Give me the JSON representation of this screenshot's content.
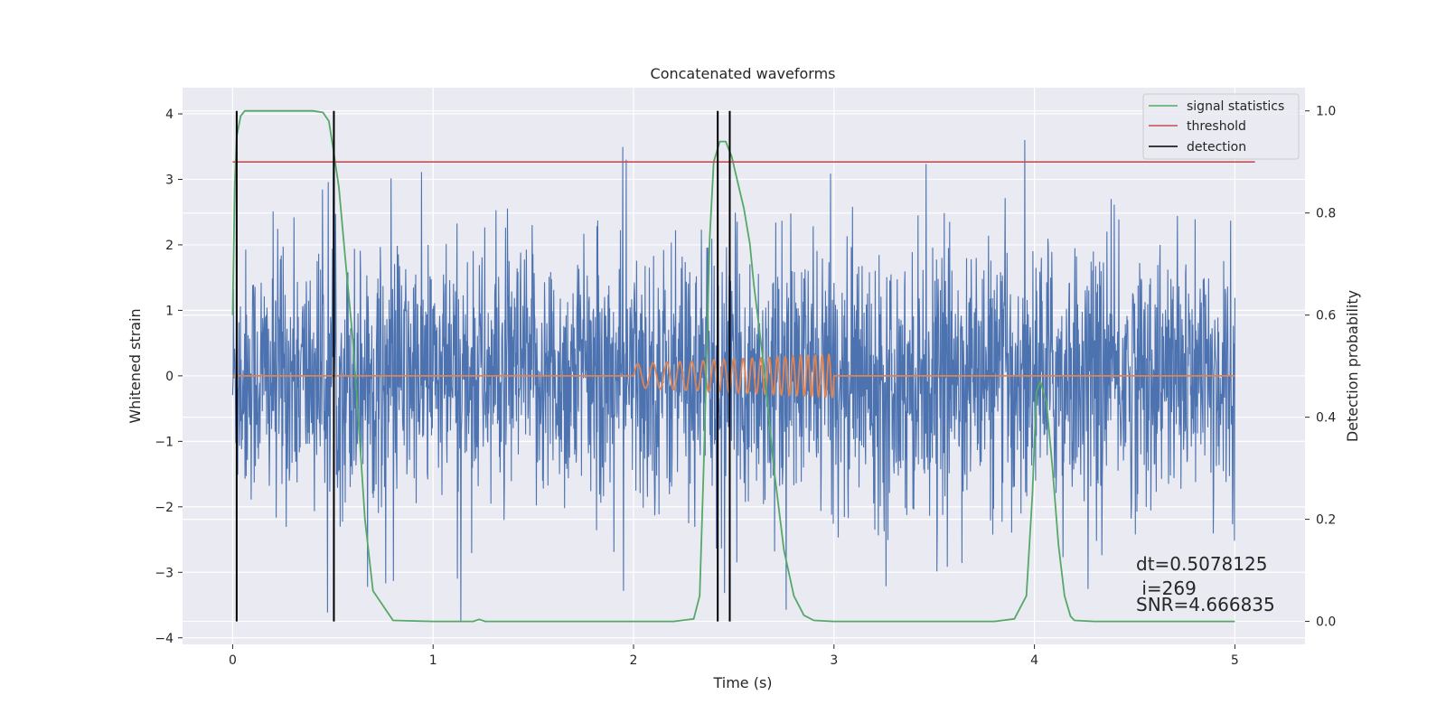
{
  "chart_data": {
    "type": "line",
    "title": "Concatenated waveforms",
    "xlabel": "Time (s)",
    "ylabel": "Whitened strain",
    "y2label": "Detection probability",
    "xlim": [
      -0.25,
      5.35
    ],
    "ylim": [
      -4.1,
      4.4
    ],
    "y2lim": [
      -0.045,
      1.0455
    ],
    "x_ticks": [
      0,
      1,
      2,
      3,
      4,
      5
    ],
    "y_ticks": [
      -4,
      -3,
      -2,
      -1,
      0,
      1,
      2,
      3,
      4
    ],
    "y2_ticks": [
      0.0,
      0.2,
      0.4,
      0.6,
      0.8,
      1.0
    ],
    "grid": true,
    "legend_position": "top-right",
    "legend": [
      "signal statistics",
      "threshold",
      "detection"
    ],
    "colors": {
      "noise": "#4c72b0",
      "injection": "#dd8452",
      "signal_statistics": "#55a868",
      "threshold": "#c44e52",
      "detection": "#000000",
      "plot_bg": "#eaeaf2",
      "grid": "#ffffff"
    },
    "noise_series": {
      "x_range": [
        0,
        5
      ],
      "center": 0,
      "typical_amplitude": 1.0,
      "peak_max": 3.6,
      "peak_min": -3.75
    },
    "injection_series": {
      "x": [
        2.0,
        3.0
      ],
      "peak_amplitude": 0.33,
      "start_frequency_hz": 12,
      "end_frequency_hz": 30,
      "flat_elsewhere": 0
    },
    "signal_statistics": {
      "x": [
        0,
        0.01,
        0.02,
        0.04,
        0.06,
        0.1,
        0.2,
        0.3,
        0.4,
        0.45,
        0.48,
        0.5,
        0.53,
        0.56,
        0.6,
        0.63,
        0.66,
        0.7,
        0.8,
        1.0,
        1.2,
        1.23,
        1.26,
        1.4,
        1.6,
        1.8,
        2.0,
        2.2,
        2.3,
        2.33,
        2.35,
        2.38,
        2.4,
        2.43,
        2.46,
        2.49,
        2.52,
        2.55,
        2.58,
        2.6,
        2.65,
        2.7,
        2.75,
        2.8,
        2.85,
        2.9,
        3.0,
        3.2,
        3.5,
        3.7,
        3.8,
        3.9,
        3.96,
        3.99,
        4.01,
        4.03,
        4.06,
        4.09,
        4.12,
        4.15,
        4.18,
        4.2,
        4.3,
        4.5,
        5.0
      ],
      "values": [
        0.6,
        0.85,
        0.95,
        0.99,
        1.0,
        1.0,
        1.0,
        1.0,
        1.0,
        0.997,
        0.98,
        0.93,
        0.85,
        0.72,
        0.55,
        0.38,
        0.2,
        0.06,
        0.002,
        0.0,
        0.0,
        0.004,
        0.0,
        0.0,
        0.0,
        0.0,
        0.0,
        0.0,
        0.005,
        0.05,
        0.3,
        0.75,
        0.9,
        0.94,
        0.94,
        0.91,
        0.86,
        0.81,
        0.74,
        0.66,
        0.5,
        0.3,
        0.14,
        0.05,
        0.012,
        0.002,
        0.0,
        0.0,
        0.0,
        0.0,
        0.0,
        0.005,
        0.05,
        0.25,
        0.45,
        0.47,
        0.43,
        0.3,
        0.15,
        0.05,
        0.01,
        0.002,
        0.0,
        0.0,
        0.0
      ]
    },
    "threshold": {
      "value": 0.9,
      "x_range": [
        0,
        5.1
      ]
    },
    "detections": [
      0.02,
      0.505,
      2.42,
      2.48
    ],
    "annotations": {
      "dt": "dt=0.5078125",
      "i": " i=269",
      "snr": "SNR=4.666835"
    }
  }
}
